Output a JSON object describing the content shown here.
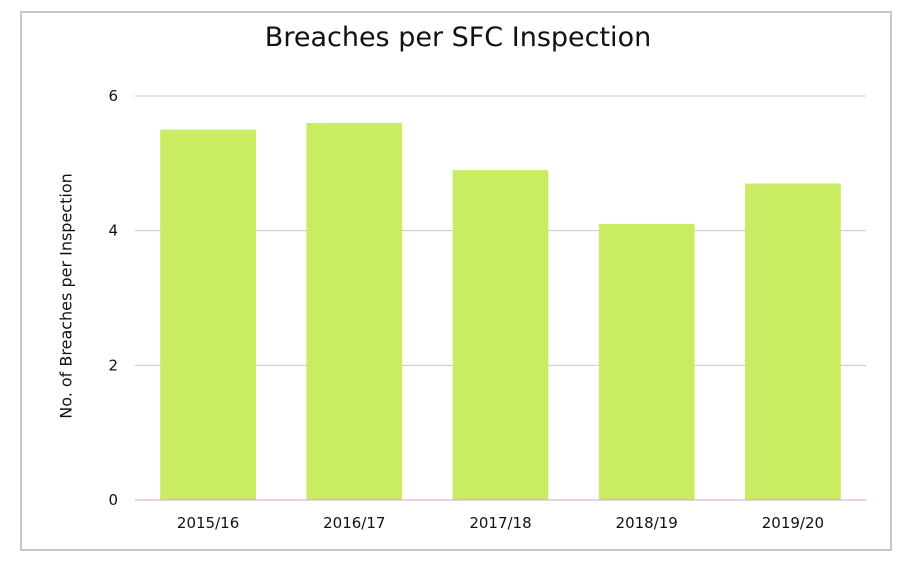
{
  "chart_data": {
    "type": "bar",
    "title": "Breaches per SFC Inspection",
    "xlabel": "",
    "ylabel": "No. of Breaches per Inspection",
    "categories": [
      "2015/16",
      "2016/17",
      "2017/18",
      "2018/19",
      "2019/20"
    ],
    "values": [
      5.5,
      5.6,
      4.9,
      4.1,
      4.7
    ],
    "ylim": [
      0,
      6
    ],
    "yticks": [
      0,
      2,
      4,
      6
    ],
    "grid": true,
    "bar_color": "#c9ec62",
    "baseline_color": "#d9a3c7",
    "grid_color": "#c8c8c8"
  }
}
